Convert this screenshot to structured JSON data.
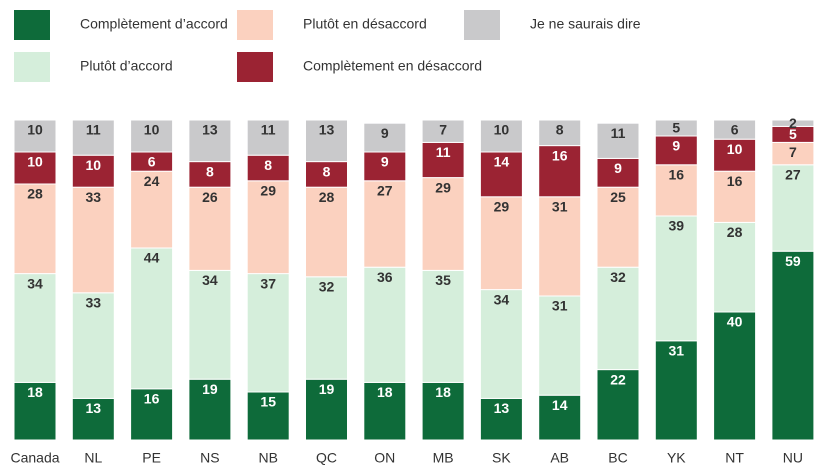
{
  "chart_data": {
    "type": "stacked-bar",
    "categories": [
      "Canada",
      "NL",
      "PE",
      "NS",
      "NB",
      "QC",
      "ON",
      "MB",
      "SK",
      "AB",
      "BC",
      "YK",
      "NT",
      "NU"
    ],
    "series": [
      {
        "name": "Complètement d’accord",
        "color": "#0e6b3a",
        "values": [
          18,
          13,
          16,
          19,
          15,
          19,
          18,
          18,
          13,
          14,
          22,
          31,
          40,
          59
        ]
      },
      {
        "name": "Plutôt d’accord",
        "color": "#d5eedb",
        "values": [
          34,
          33,
          44,
          34,
          37,
          32,
          36,
          35,
          34,
          31,
          32,
          39,
          28,
          27
        ]
      },
      {
        "name": "Plutôt en désaccord",
        "color": "#fbd1bf",
        "values": [
          28,
          33,
          24,
          26,
          29,
          28,
          27,
          29,
          29,
          31,
          25,
          16,
          16,
          7
        ]
      },
      {
        "name": "Complètement en désaccord",
        "color": "#9b2333",
        "values": [
          10,
          10,
          6,
          8,
          8,
          8,
          9,
          11,
          14,
          16,
          9,
          9,
          10,
          5
        ]
      },
      {
        "name": "Je ne saurais dire",
        "color": "#c9c9cb",
        "values": [
          10,
          11,
          10,
          13,
          11,
          13,
          9,
          7,
          10,
          8,
          11,
          5,
          6,
          2
        ]
      }
    ],
    "ylim": [
      0,
      100
    ]
  }
}
